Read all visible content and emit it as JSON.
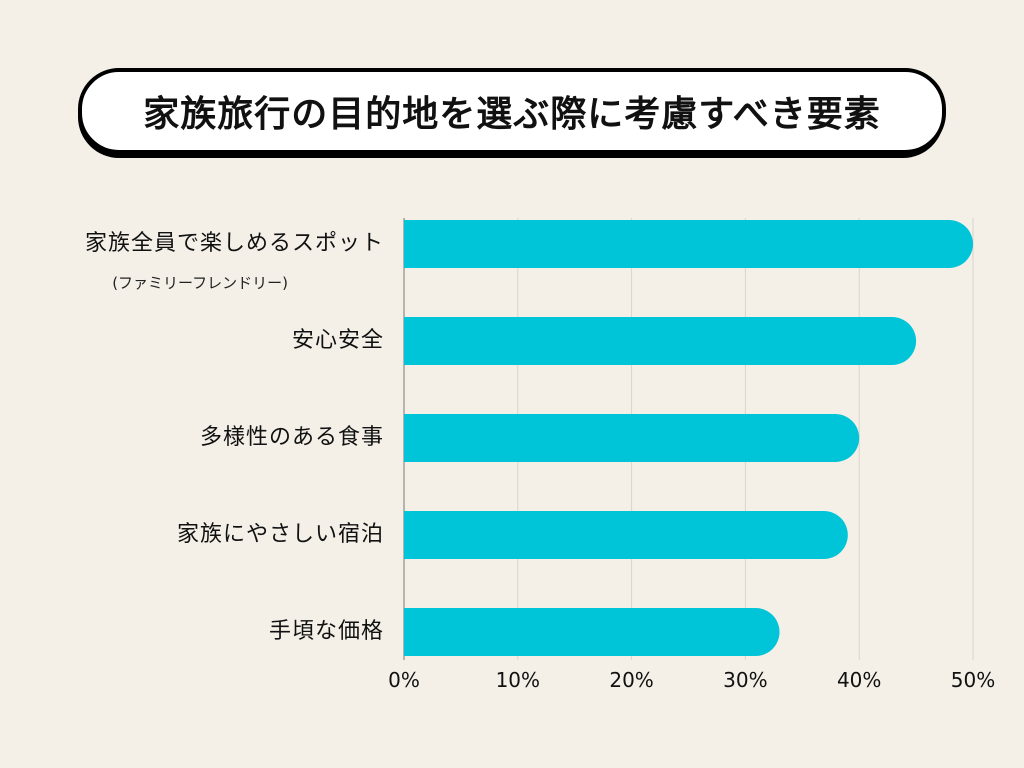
{
  "title": "家族旅行の目的地を選ぶ際に考慮すべき要素",
  "colors": {
    "bar": "#00c4d8",
    "background": "#f4f0e8",
    "grid": "#d9d4cc",
    "axis": "#b7b3ad"
  },
  "chart_data": {
    "type": "bar",
    "orientation": "horizontal",
    "categories": [
      {
        "label": "家族全員で楽しめるスポット",
        "sublabel": "(ファミリーフレンドリー)"
      },
      {
        "label": "安心安全"
      },
      {
        "label": "多様性のある食事"
      },
      {
        "label": "家族にやさしい宿泊"
      },
      {
        "label": "手頃な価格"
      }
    ],
    "values": [
      50,
      45,
      40,
      39,
      33
    ],
    "xlim": [
      0,
      50
    ],
    "x_ticks": [
      "0%",
      "10%",
      "20%",
      "30%",
      "40%",
      "50%"
    ],
    "grid": true
  }
}
